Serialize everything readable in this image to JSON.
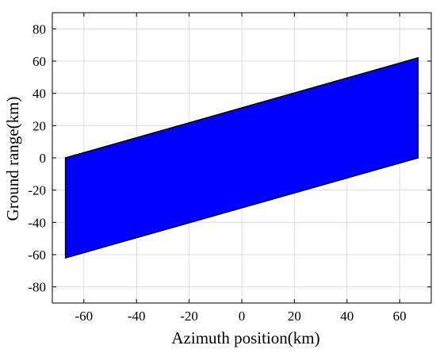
{
  "chart_data": {
    "type": "area",
    "xlabel": "Azimuth position(km)",
    "ylabel": "Ground range(km)",
    "xlim": [
      -72,
      72
    ],
    "ylim": [
      -90,
      90
    ],
    "xticks": [
      -60,
      -40,
      -20,
      0,
      20,
      40,
      60
    ],
    "yticks": [
      -80,
      -60,
      -40,
      -20,
      0,
      20,
      40,
      60,
      80
    ],
    "grid": true,
    "legend": "none",
    "series": [
      {
        "fill_color": "#0000ff",
        "edge_color": "#000000",
        "polygon": [
          {
            "x": -67,
            "y": 0
          },
          {
            "x": 67,
            "y": 62
          },
          {
            "x": 67,
            "y": 0
          },
          {
            "x": -67,
            "y": -62
          }
        ]
      }
    ]
  }
}
